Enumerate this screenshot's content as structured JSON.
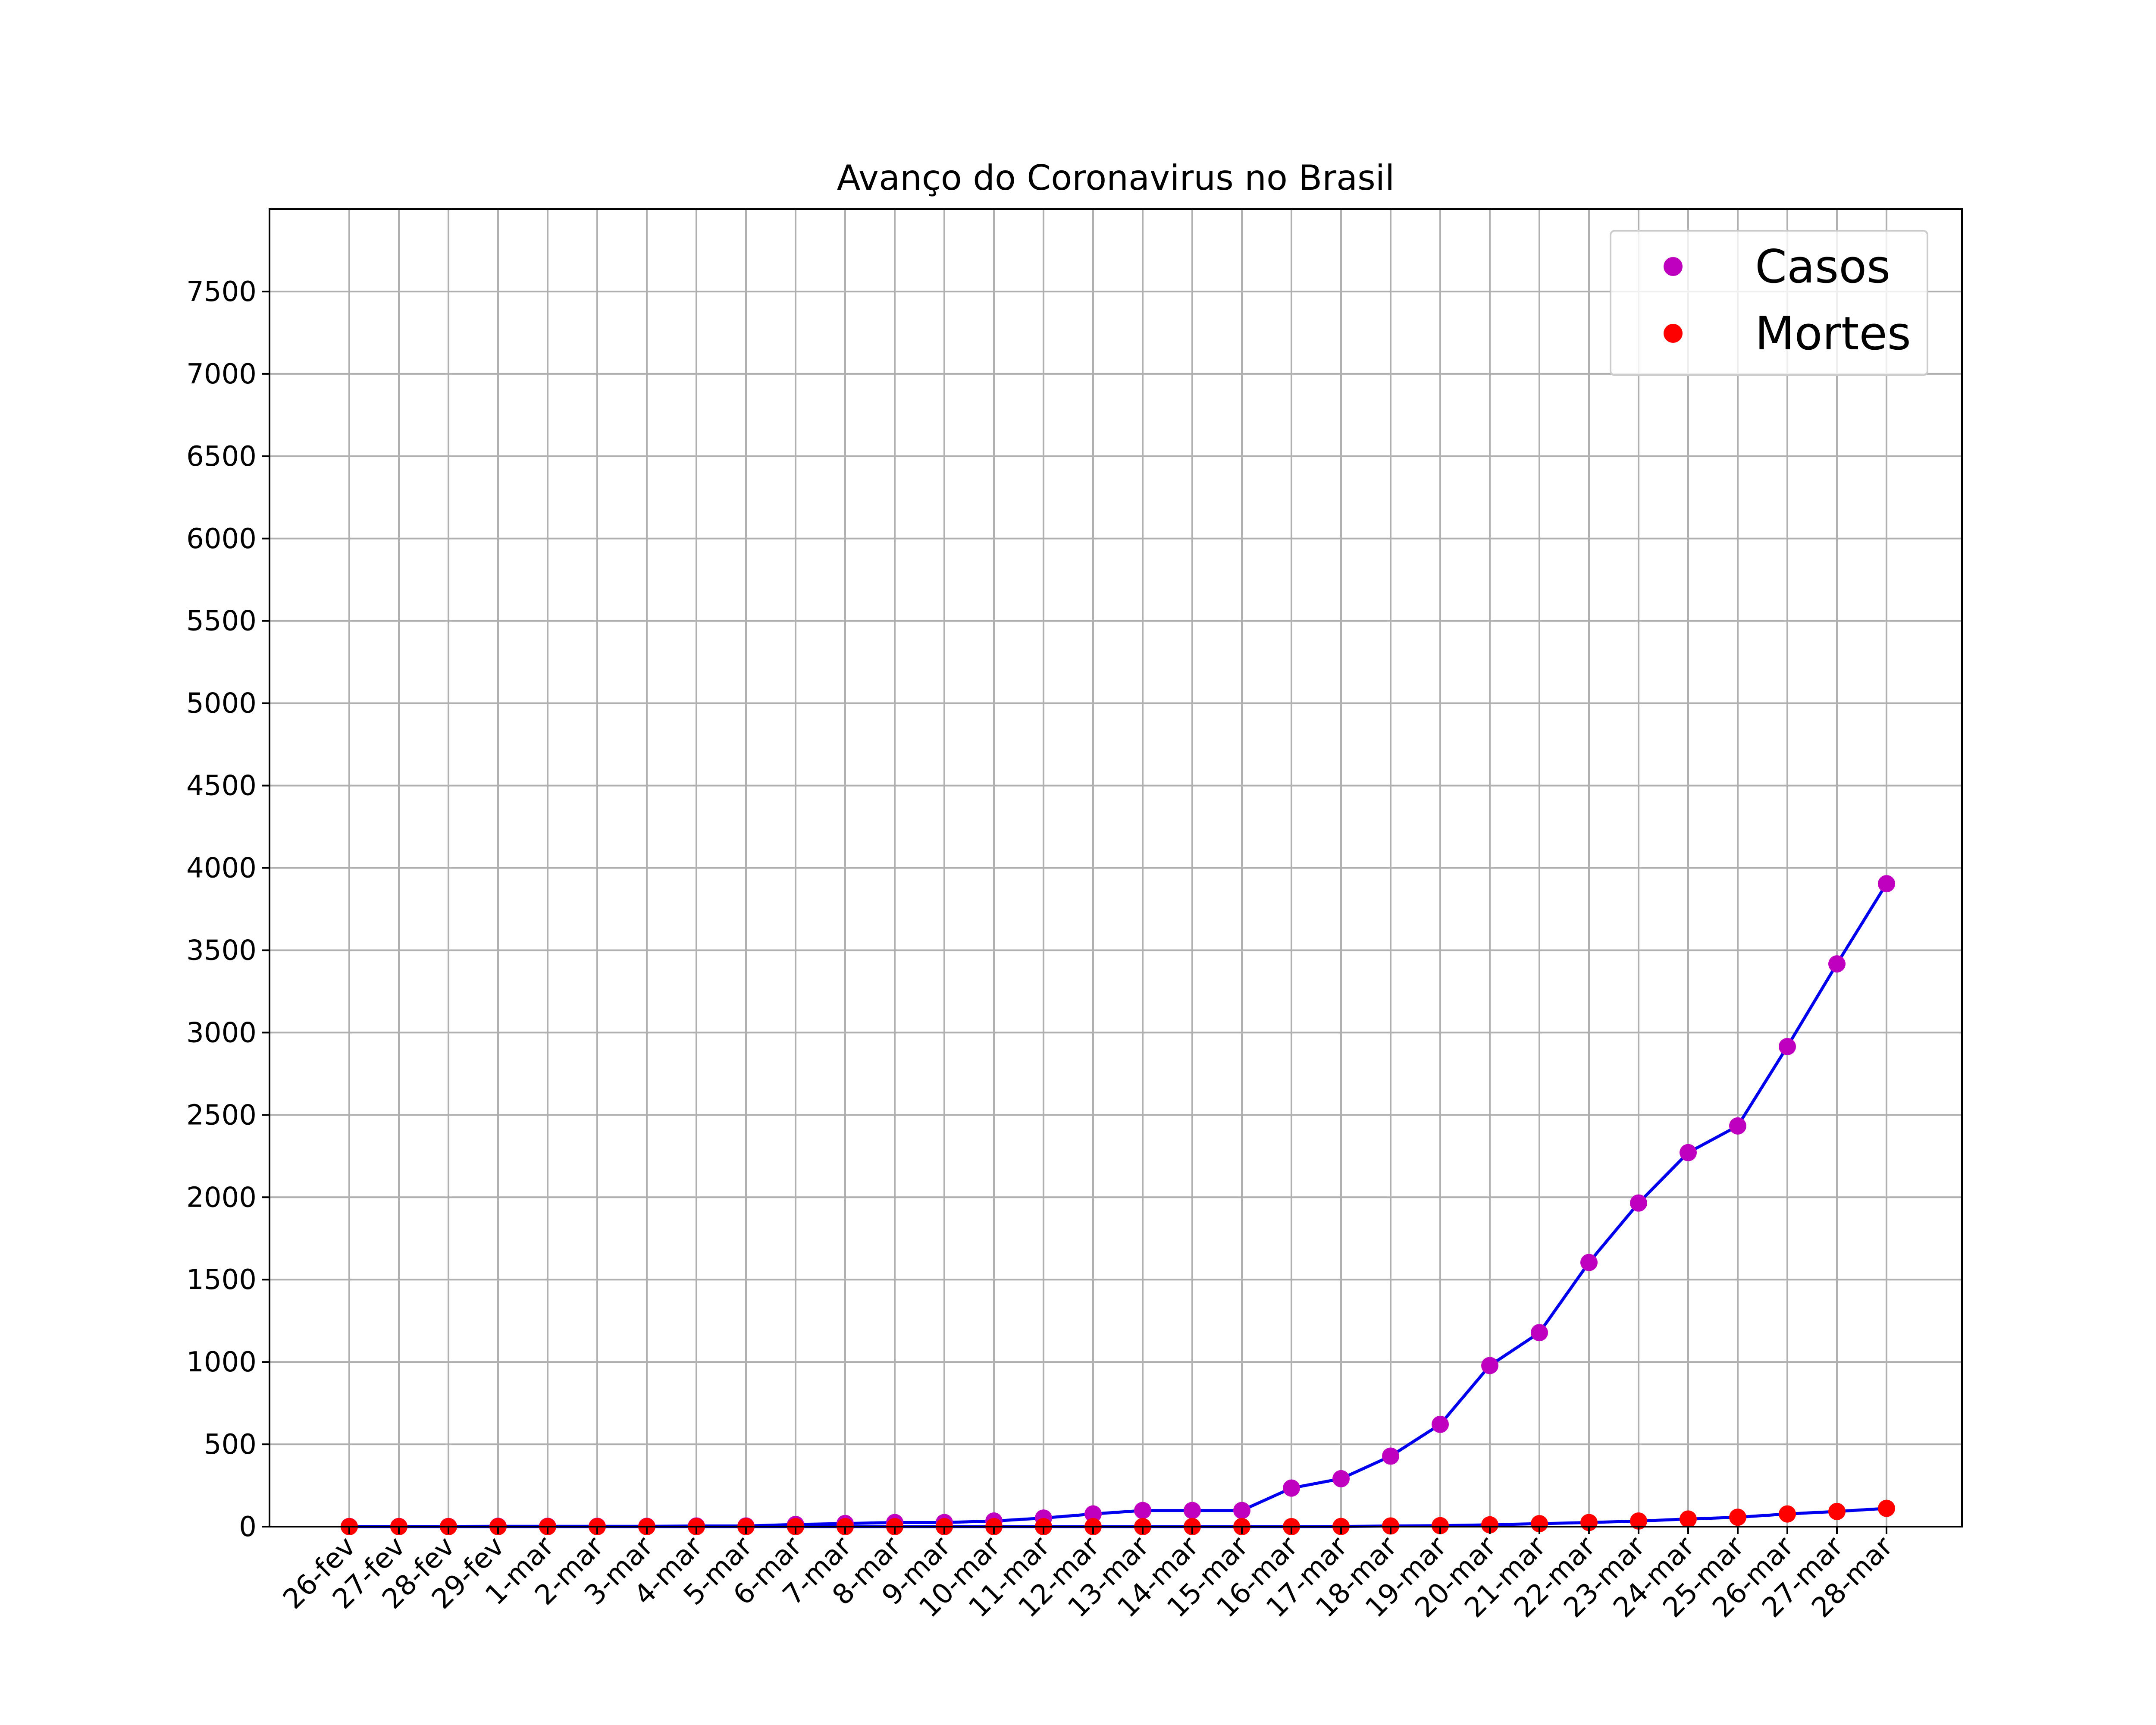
{
  "chart_data": {
    "type": "line",
    "title": "Avanço do Coronavirus no Brasil",
    "xlabel": "",
    "ylabel": "",
    "categories": [
      "26-fev",
      "27-fev",
      "28-fev",
      "29-fev",
      "1-mar",
      "2-mar",
      "3-mar",
      "4-mar",
      "5-mar",
      "6-mar",
      "7-mar",
      "8-mar",
      "9-mar",
      "10-mar",
      "11-mar",
      "12-mar",
      "13-mar",
      "14-mar",
      "15-mar",
      "16-mar",
      "17-mar",
      "18-mar",
      "19-mar",
      "20-mar",
      "21-mar",
      "22-mar",
      "23-mar",
      "24-mar",
      "25-mar",
      "26-mar",
      "27-mar",
      "28-mar"
    ],
    "y_ticks": [
      0,
      500,
      1000,
      1500,
      2000,
      2500,
      3000,
      3500,
      4000,
      4500,
      5000,
      5500,
      6000,
      6500,
      7000,
      7500
    ],
    "ylim": [
      0,
      8000
    ],
    "grid": true,
    "legend_position": "top-right",
    "line_color": "#0000ee",
    "series": [
      {
        "name": "Casos",
        "marker_color": "#bf00bf",
        "values": [
          1,
          1,
          1,
          2,
          2,
          2,
          2,
          4,
          4,
          13,
          19,
          25,
          25,
          34,
          52,
          77,
          98,
          98,
          98,
          234,
          291,
          428,
          621,
          978,
          1178,
          1604,
          1965,
          2271,
          2433,
          2915,
          3417,
          3904
        ]
      },
      {
        "name": "Mortes",
        "marker_color": "#ff0000",
        "values": [
          0,
          0,
          0,
          0,
          0,
          0,
          0,
          0,
          0,
          0,
          0,
          0,
          0,
          0,
          0,
          0,
          0,
          0,
          0,
          0,
          1,
          4,
          6,
          11,
          18,
          25,
          34,
          46,
          57,
          77,
          92,
          111
        ]
      }
    ]
  }
}
